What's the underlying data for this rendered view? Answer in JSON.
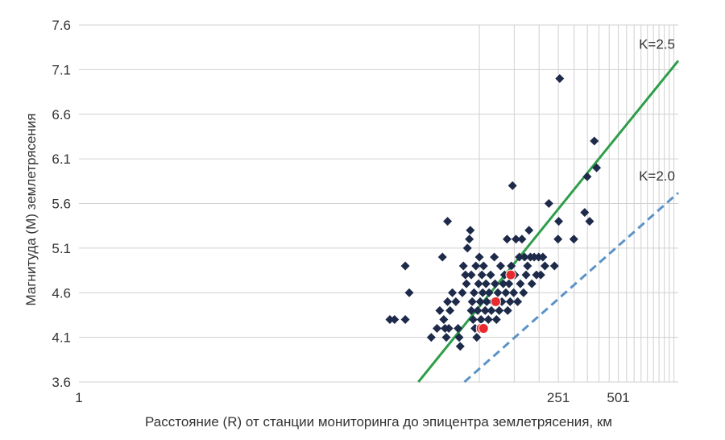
{
  "chart_data": {
    "type": "scatter",
    "title": "",
    "xlabel": "Расстояние (R) от станции мониторинга до эпицентра землетрясения, км",
    "ylabel": "Магнитуда (М) землетрясения",
    "x_scale": "log",
    "xlim": [
      1,
      1000
    ],
    "ylim": [
      3.6,
      7.6
    ],
    "x_tick_labels": [
      {
        "value": 1,
        "label": "1"
      },
      {
        "value": 251,
        "label": "251"
      },
      {
        "value": 501,
        "label": "501"
      }
    ],
    "x_gridlines": [
      101,
      151,
      201,
      251,
      301,
      351,
      401,
      451,
      501,
      551,
      601,
      651,
      701,
      751,
      801,
      851,
      901,
      951
    ],
    "y_ticks": [
      3.6,
      4.1,
      4.6,
      5.1,
      5.6,
      6.1,
      6.6,
      7.1,
      7.6
    ],
    "y_tick_labels": [
      "3.6",
      "4.1",
      "4.6",
      "5.1",
      "5.6",
      "6.1",
      "6.6",
      "7.1",
      "7.6"
    ],
    "grid": true,
    "lines": [
      {
        "label": "K=2.5",
        "color": "#2e9e4a",
        "style": "solid",
        "points": [
          [
            50,
            3.6
          ],
          [
            1000,
            7.2
          ]
        ]
      },
      {
        "label": "K=2.0",
        "color": "#5b93c7",
        "style": "dashed",
        "points": [
          [
            85,
            3.6
          ],
          [
            1000,
            5.72
          ]
        ]
      }
    ],
    "series": [
      {
        "marker": "diamond",
        "color": "#1e2a4a",
        "points": [
          [
            36,
            4.3
          ],
          [
            38,
            4.3
          ],
          [
            43,
            4.3
          ],
          [
            43,
            4.9
          ],
          [
            45,
            4.6
          ],
          [
            58,
            4.1
          ],
          [
            62,
            4.2
          ],
          [
            64,
            4.4
          ],
          [
            66,
            5.0
          ],
          [
            67,
            4.3
          ],
          [
            68,
            4.2
          ],
          [
            69,
            4.1
          ],
          [
            70,
            5.4
          ],
          [
            70,
            4.5
          ],
          [
            71,
            4.2
          ],
          [
            72,
            4.4
          ],
          [
            74,
            4.6
          ],
          [
            77,
            4.5
          ],
          [
            79,
            4.2
          ],
          [
            80,
            4.1
          ],
          [
            81,
            4.0
          ],
          [
            83,
            4.6
          ],
          [
            84,
            4.9
          ],
          [
            86,
            4.8
          ],
          [
            87,
            4.7
          ],
          [
            88,
            5.1
          ],
          [
            90,
            5.2
          ],
          [
            91,
            5.3
          ],
          [
            92,
            4.8
          ],
          [
            92,
            4.4
          ],
          [
            93,
            4.5
          ],
          [
            94,
            4.3
          ],
          [
            95,
            4.6
          ],
          [
            96,
            4.2
          ],
          [
            97,
            4.9
          ],
          [
            98,
            4.1
          ],
          [
            99,
            4.4
          ],
          [
            100,
            4.7
          ],
          [
            101,
            5.0
          ],
          [
            102,
            4.5
          ],
          [
            103,
            4.3
          ],
          [
            104,
            4.8
          ],
          [
            105,
            4.6
          ],
          [
            106,
            4.9
          ],
          [
            107,
            4.2
          ],
          [
            108,
            4.4
          ],
          [
            109,
            4.7
          ],
          [
            110,
            4.5
          ],
          [
            112,
            4.3
          ],
          [
            113,
            4.6
          ],
          [
            115,
            4.8
          ],
          [
            116,
            4.4
          ],
          [
            118,
            4.5
          ],
          [
            120,
            5.0
          ],
          [
            121,
            4.7
          ],
          [
            123,
            4.3
          ],
          [
            125,
            4.6
          ],
          [
            127,
            4.4
          ],
          [
            129,
            4.9
          ],
          [
            131,
            4.5
          ],
          [
            133,
            4.7
          ],
          [
            135,
            4.8
          ],
          [
            137,
            4.6
          ],
          [
            139,
            5.2
          ],
          [
            140,
            4.4
          ],
          [
            142,
            4.7
          ],
          [
            144,
            4.5
          ],
          [
            146,
            4.9
          ],
          [
            148,
            5.8
          ],
          [
            150,
            4.6
          ],
          [
            152,
            4.8
          ],
          [
            154,
            5.2
          ],
          [
            157,
            4.5
          ],
          [
            160,
            5.0
          ],
          [
            162,
            4.7
          ],
          [
            165,
            5.2
          ],
          [
            168,
            4.6
          ],
          [
            170,
            5.0
          ],
          [
            173,
            4.8
          ],
          [
            176,
            4.9
          ],
          [
            179,
            5.3
          ],
          [
            182,
            5.0
          ],
          [
            185,
            4.7
          ],
          [
            190,
            5.0
          ],
          [
            195,
            4.8
          ],
          [
            200,
            5.0
          ],
          [
            205,
            4.8
          ],
          [
            210,
            5.0
          ],
          [
            215,
            4.9
          ],
          [
            225,
            5.6
          ],
          [
            240,
            4.9
          ],
          [
            250,
            5.2
          ],
          [
            252,
            5.4
          ],
          [
            255,
            7.0
          ],
          [
            300,
            5.2
          ],
          [
            340,
            5.5
          ],
          [
            350,
            5.9
          ],
          [
            360,
            5.4
          ],
          [
            380,
            6.3
          ],
          [
            390,
            6.0
          ]
        ]
      },
      {
        "marker": "circle",
        "color": "#e8292e",
        "points": [
          [
            103,
            4.2
          ],
          [
            106,
            4.2
          ],
          [
            122,
            4.5
          ],
          [
            145,
            4.8
          ]
        ]
      }
    ]
  }
}
